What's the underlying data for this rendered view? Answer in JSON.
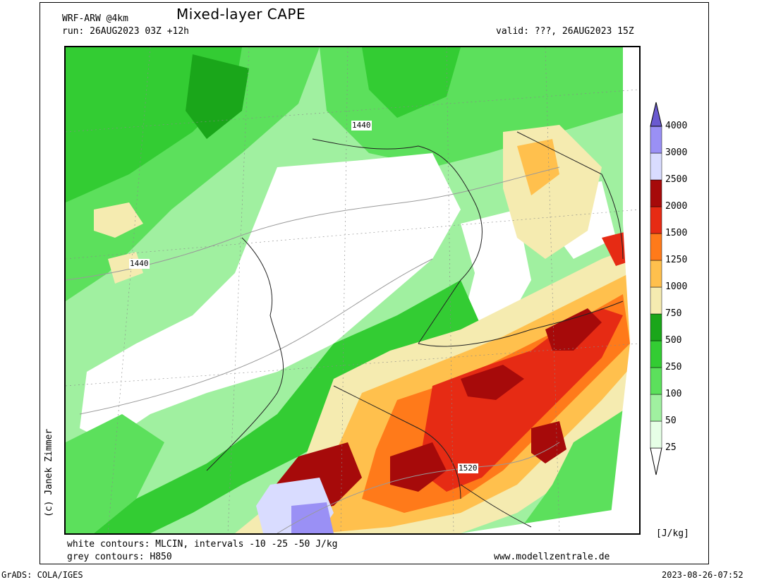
{
  "header": {
    "model": "WRF-ARW @4km",
    "title": "Mixed-layer CAPE",
    "run": "run: 26AUG2023 03Z +12h",
    "valid": "valid: ???, 26AUG2023 15Z"
  },
  "footer": {
    "white_contours": "white contours: MLCIN, intervals -10 -25 -50 J/kg",
    "grey_contours": "grey contours: H850",
    "website": "www.modellzentrale.de",
    "grads": "GrADS: COLA/IGES",
    "timestamp": "2023-08-26-07:52",
    "copyright": "(c) Janek Zimmer",
    "unit": "[J/kg]"
  },
  "map": {
    "contour_labels": [
      "1440",
      "1440",
      "1520"
    ]
  },
  "legend": {
    "levels": [
      "25",
      "50",
      "100",
      "250",
      "500",
      "750",
      "1000",
      "1250",
      "1500",
      "2000",
      "2500",
      "3000",
      "4000"
    ],
    "colors": [
      "#e6ffe6",
      "#a0f0a0",
      "#5ce05c",
      "#33cc33",
      "#1aa61a",
      "#f5ebb0",
      "#ffc04d",
      "#ff7a1a",
      "#e62b14",
      "#a60a0a",
      "#d9dcff",
      "#9a90f5",
      "#6a5ad0",
      "#5046b8"
    ]
  },
  "colors": {
    "white": "#ffffff",
    "light_green": "#a0f0a0",
    "green": "#5ce05c",
    "mid_green": "#33cc33",
    "dark_green": "#1aa61a",
    "pale_yellow": "#f5ebb0",
    "orange": "#ffc04d",
    "dark_orange": "#ff7a1a",
    "red": "#e62b14",
    "dark_red": "#a60a0a",
    "lavender": "#d9dcff",
    "purple": "#9a90f5"
  }
}
